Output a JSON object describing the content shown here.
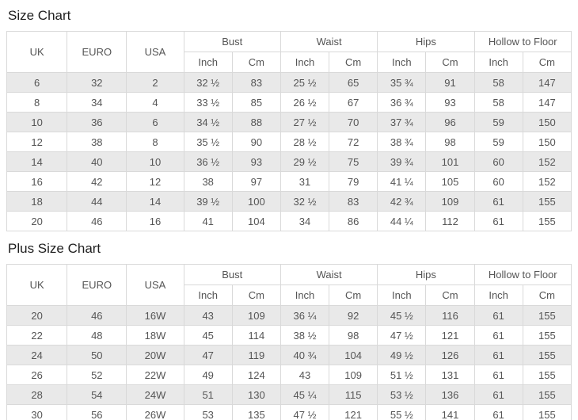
{
  "colors": {
    "stripe": "#e9e9e9",
    "border": "#d9d9d9",
    "text": "#555555",
    "title": "#1f1f1f"
  },
  "sections": [
    {
      "title": "Size Chart",
      "columns": {
        "simple": [
          "UK",
          "EURO",
          "USA"
        ],
        "groups": [
          {
            "label": "Bust",
            "sub": [
              "Inch",
              "Cm"
            ]
          },
          {
            "label": "Waist",
            "sub": [
              "Inch",
              "Cm"
            ]
          },
          {
            "label": "Hips",
            "sub": [
              "Inch",
              "Cm"
            ]
          },
          {
            "label": "Hollow to Floor",
            "sub": [
              "Inch",
              "Cm"
            ]
          }
        ]
      },
      "rows": [
        [
          "6",
          "32",
          "2",
          "32 ½",
          "83",
          "25 ½",
          "65",
          "35 ¾",
          "91",
          "58",
          "147"
        ],
        [
          "8",
          "34",
          "4",
          "33 ½",
          "85",
          "26 ½",
          "67",
          "36 ¾",
          "93",
          "58",
          "147"
        ],
        [
          "10",
          "36",
          "6",
          "34 ½",
          "88",
          "27 ½",
          "70",
          "37 ¾",
          "96",
          "59",
          "150"
        ],
        [
          "12",
          "38",
          "8",
          "35 ½",
          "90",
          "28 ½",
          "72",
          "38 ¾",
          "98",
          "59",
          "150"
        ],
        [
          "14",
          "40",
          "10",
          "36 ½",
          "93",
          "29 ½",
          "75",
          "39 ¾",
          "101",
          "60",
          "152"
        ],
        [
          "16",
          "42",
          "12",
          "38",
          "97",
          "31",
          "79",
          "41 ¼",
          "105",
          "60",
          "152"
        ],
        [
          "18",
          "44",
          "14",
          "39 ½",
          "100",
          "32 ½",
          "83",
          "42 ¾",
          "109",
          "61",
          "155"
        ],
        [
          "20",
          "46",
          "16",
          "41",
          "104",
          "34",
          "86",
          "44 ¼",
          "112",
          "61",
          "155"
        ]
      ]
    },
    {
      "title": "Plus Size Chart",
      "columns": {
        "simple": [
          "UK",
          "EURO",
          "USA"
        ],
        "groups": [
          {
            "label": "Bust",
            "sub": [
              "Inch",
              "Cm"
            ]
          },
          {
            "label": "Waist",
            "sub": [
              "Inch",
              "Cm"
            ]
          },
          {
            "label": "Hips",
            "sub": [
              "Inch",
              "Cm"
            ]
          },
          {
            "label": "Hollow to Floor",
            "sub": [
              "Inch",
              "Cm"
            ]
          }
        ]
      },
      "rows": [
        [
          "20",
          "46",
          "16W",
          "43",
          "109",
          "36 ¼",
          "92",
          "45 ½",
          "116",
          "61",
          "155"
        ],
        [
          "22",
          "48",
          "18W",
          "45",
          "114",
          "38 ½",
          "98",
          "47 ½",
          "121",
          "61",
          "155"
        ],
        [
          "24",
          "50",
          "20W",
          "47",
          "119",
          "40 ¾",
          "104",
          "49 ½",
          "126",
          "61",
          "155"
        ],
        [
          "26",
          "52",
          "22W",
          "49",
          "124",
          "43",
          "109",
          "51 ½",
          "131",
          "61",
          "155"
        ],
        [
          "28",
          "54",
          "24W",
          "51",
          "130",
          "45 ¼",
          "115",
          "53 ½",
          "136",
          "61",
          "155"
        ],
        [
          "30",
          "56",
          "26W",
          "53",
          "135",
          "47 ½",
          "121",
          "55 ½",
          "141",
          "61",
          "155"
        ]
      ]
    }
  ]
}
